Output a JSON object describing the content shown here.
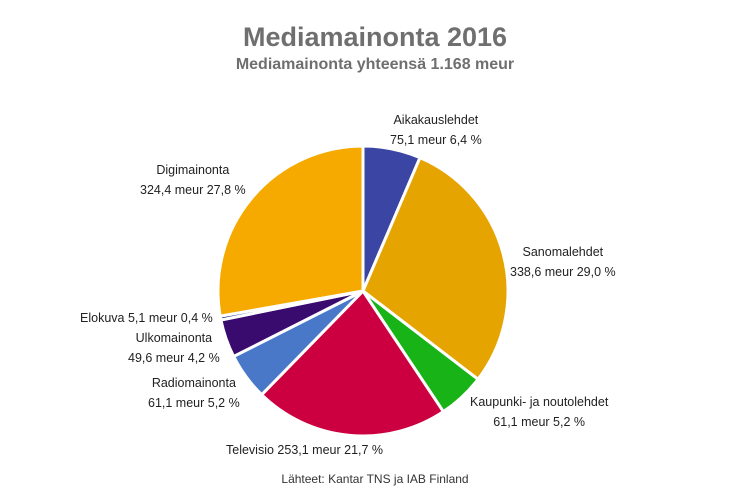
{
  "chart_data": {
    "type": "pie",
    "title": "Mediamainonta 2016",
    "subtitle": "Mediamainonta yhteensä 1.168 meur",
    "source": "Lähteet: Kantar TNS ja IAB Finland",
    "slices": [
      {
        "name": "Aikakauslehdet",
        "value": 75.1,
        "value_label": "75,1 meur 6,4 %",
        "color": "#3b45a3"
      },
      {
        "name": "Sanomalehdet",
        "value": 338.6,
        "value_label": "338,6 meur 29,0 %",
        "color": "#e5a400"
      },
      {
        "name": "Kaupunki- ja noutolehdet",
        "value": 61.1,
        "value_label": "61,1 meur 5,2 %",
        "color": "#17b317"
      },
      {
        "name": "Televisio",
        "value": 253.1,
        "value_label": "253,1 meur 21,7 %",
        "color": "#cc0040"
      },
      {
        "name": "Radiomainonta",
        "value": 61.1,
        "value_label": "61,1 meur 5,2 %",
        "color": "#4a78c8"
      },
      {
        "name": "Ulkomainonta",
        "value": 49.6,
        "value_label": "49,6 meur 4,2 %",
        "color": "#3a0b6e"
      },
      {
        "name": "Elokuva",
        "value": 5.1,
        "value_label": "5,1 meur 0,4 %",
        "color": "#1f2d80"
      },
      {
        "name": "Digimainonta",
        "value": 324.4,
        "value_label": "324,4 meur 27,8 %",
        "color": "#f6aa00"
      }
    ]
  }
}
